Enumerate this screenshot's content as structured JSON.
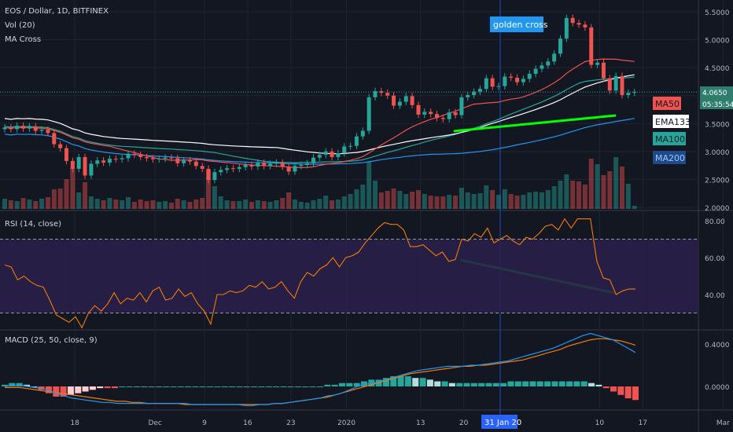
{
  "colors": {
    "bg": "#131722",
    "grid": "#1f2430",
    "text": "#b2b5be",
    "up": "#26a69a",
    "down": "#ef5350",
    "ma50": "#ef5350",
    "ema133": "#ffffff",
    "ma100": "#26a69a",
    "ma200": "#2196f3",
    "trend": "#00ff00",
    "rsi": "#f57c00",
    "rsi_band": "#2a1f4a",
    "macd": "#2196f3",
    "signal": "#f57c00",
    "hist_pos": "#26a69a",
    "hist_pos_light": "#b2dfdb",
    "hist_neg": "#ef5350",
    "hist_neg_light": "#ffcdd2"
  },
  "chart_data": [
    {
      "type": "candlestick",
      "title": "EOS / Dollar, 1D, BITFINEX",
      "indicators": [
        "Vol (20)",
        "MA Cross"
      ],
      "ylim": [
        2.0,
        5.5
      ],
      "y_ticks": [
        "5.5000",
        "5.0000",
        "4.5000",
        "4.0000",
        "3.5000",
        "3.0000",
        "2.5000",
        "2.0000"
      ],
      "x_ticks": [
        "18",
        "Dec",
        "9",
        "16",
        "23",
        "2020",
        "13",
        "20",
        "10",
        "17",
        "Mar"
      ],
      "crosshair_date": "31 Jan 20",
      "last_price": "4.0650",
      "countdown": "05:35:54",
      "annotation": "golden cross",
      "ma_labels": [
        "MA50",
        "EMA133",
        "MA100",
        "MA200"
      ],
      "closes": [
        3.43,
        3.4,
        3.46,
        3.41,
        3.45,
        3.37,
        3.39,
        3.33,
        3.13,
        3.06,
        2.83,
        2.69,
        2.9,
        2.57,
        2.78,
        2.84,
        2.8,
        2.87,
        2.86,
        2.88,
        2.96,
        2.94,
        2.9,
        2.88,
        2.86,
        2.87,
        2.89,
        2.88,
        2.79,
        2.84,
        2.82,
        2.74,
        2.69,
        2.49,
        2.63,
        2.67,
        2.7,
        2.69,
        2.72,
        2.76,
        2.73,
        2.8,
        2.74,
        2.78,
        2.8,
        2.73,
        2.64,
        2.74,
        2.76,
        2.79,
        2.89,
        2.94,
        3.0,
        2.9,
        2.97,
        3.09,
        3.1,
        3.27,
        3.37,
        3.97,
        4.08,
        4.05,
        4.0,
        3.82,
        3.89,
        3.99,
        3.83,
        3.66,
        3.71,
        3.67,
        3.6,
        3.58,
        3.7,
        3.65,
        3.97,
        4.01,
        4.07,
        4.12,
        4.31,
        4.16,
        4.17,
        4.34,
        4.32,
        4.24,
        4.3,
        4.39,
        4.48,
        4.54,
        4.61,
        4.75,
        5.02,
        5.39,
        5.3,
        5.27,
        5.22,
        4.55,
        4.59,
        4.31,
        4.09,
        4.35,
        4.01,
        4.05,
        4.065
      ],
      "volume": [
        1.3,
        1.1,
        1.0,
        1.4,
        1.2,
        1.0,
        1.3,
        1.5,
        2.5,
        2.6,
        3.8,
        5.2,
        2.1,
        3.4,
        1.6,
        1.3,
        1.1,
        1.4,
        1.2,
        1.1,
        1.5,
        0.9,
        1.2,
        1.0,
        1.1,
        0.9,
        1.0,
        0.8,
        1.3,
        1.1,
        0.9,
        1.2,
        1.4,
        4.9,
        2.9,
        1.6,
        1.1,
        1.0,
        1.0,
        1.2,
        0.9,
        1.1,
        1.0,
        0.9,
        1.1,
        1.4,
        2.1,
        1.2,
        0.9,
        0.8,
        1.1,
        1.3,
        1.7,
        1.1,
        1.2,
        1.6,
        1.9,
        2.5,
        3.1,
        6.0,
        3.6,
        2.1,
        2.3,
        2.6,
        2.3,
        1.9,
        2.2,
        2.4,
        1.9,
        1.7,
        1.6,
        1.6,
        1.8,
        1.7,
        2.7,
        2.1,
        1.9,
        2.0,
        3.0,
        2.4,
        1.8,
        2.5,
        1.9,
        1.7,
        1.8,
        2.1,
        2.2,
        2.1,
        2.4,
        2.9,
        3.6,
        4.4,
        3.6,
        3.5,
        3.1,
        6.4,
        5.7,
        4.3,
        4.8,
        6.6,
        5.4,
        3.2,
        0.4
      ]
    },
    {
      "type": "line",
      "title": "RSI (14, close)",
      "ylim": [
        20,
        82
      ],
      "y_ticks": [
        "80.00",
        "60.00",
        "40.00"
      ],
      "bands": [
        30,
        70
      ],
      "values": [
        56,
        55,
        48,
        50,
        47,
        45,
        44,
        37,
        29,
        27,
        25,
        28,
        22,
        30,
        34,
        31,
        35,
        41,
        35,
        38,
        37,
        41,
        36,
        42,
        44,
        37,
        38,
        43,
        39,
        41,
        35,
        31,
        24,
        40,
        40,
        42,
        41,
        42,
        45,
        44,
        47,
        43,
        44,
        47,
        42,
        38,
        47,
        52,
        50,
        54,
        56,
        60,
        55,
        60,
        61,
        63,
        68,
        72,
        76,
        79,
        78,
        78,
        75,
        66,
        66,
        67,
        64,
        61,
        63,
        58,
        59,
        70,
        69,
        73,
        71,
        76,
        68,
        70,
        72,
        69,
        67,
        71,
        70,
        73,
        77,
        78,
        75,
        81,
        76,
        81,
        81,
        81,
        58,
        49,
        48,
        40,
        42,
        43,
        43
      ]
    },
    {
      "type": "line",
      "title": "MACD (25, 50, close, 9)",
      "ylim": [
        -0.18,
        0.5
      ],
      "y_ticks": [
        "0.4000",
        "0.0000"
      ],
      "series": [
        {
          "name": "MACD",
          "values": [
            0.0,
            0.01,
            0.01,
            0.0,
            -0.01,
            -0.02,
            -0.04,
            -0.07,
            -0.09,
            -0.11,
            -0.12,
            -0.13,
            -0.14,
            -0.15,
            -0.15,
            -0.16,
            -0.16,
            -0.16,
            -0.16,
            -0.16,
            -0.16,
            -0.16,
            -0.16,
            -0.16,
            -0.16,
            -0.17,
            -0.17,
            -0.17,
            -0.17,
            -0.17,
            -0.17,
            -0.17,
            -0.18,
            -0.18,
            -0.17,
            -0.17,
            -0.16,
            -0.16,
            -0.15,
            -0.14,
            -0.13,
            -0.12,
            -0.11,
            -0.09,
            -0.08,
            -0.06,
            -0.03,
            0.0,
            0.02,
            0.03,
            0.05,
            0.07,
            0.09,
            0.11,
            0.13,
            0.15,
            0.16,
            0.17,
            0.18,
            0.19,
            0.19,
            0.19,
            0.2,
            0.2,
            0.21,
            0.22,
            0.23,
            0.24,
            0.26,
            0.28,
            0.3,
            0.32,
            0.34,
            0.36,
            0.39,
            0.42,
            0.45,
            0.48,
            0.5,
            0.48,
            0.46,
            0.44,
            0.4,
            0.36,
            0.32
          ]
        },
        {
          "name": "Signal",
          "values": [
            -0.01,
            -0.01,
            -0.01,
            -0.02,
            -0.03,
            -0.04,
            -0.05,
            -0.06,
            -0.07,
            -0.08,
            -0.09,
            -0.1,
            -0.11,
            -0.12,
            -0.13,
            -0.14,
            -0.14,
            -0.15,
            -0.15,
            -0.16,
            -0.16,
            -0.16,
            -0.16,
            -0.16,
            -0.17,
            -0.17,
            -0.17,
            -0.17,
            -0.17,
            -0.17,
            -0.17,
            -0.17,
            -0.17,
            -0.17,
            -0.17,
            -0.17,
            -0.16,
            -0.16,
            -0.15,
            -0.14,
            -0.13,
            -0.12,
            -0.11,
            -0.1,
            -0.08,
            -0.06,
            -0.04,
            -0.02,
            0.0,
            0.02,
            0.04,
            0.06,
            0.08,
            0.1,
            0.12,
            0.13,
            0.14,
            0.15,
            0.16,
            0.17,
            0.18,
            0.19,
            0.19,
            0.2,
            0.2,
            0.21,
            0.22,
            0.23,
            0.24,
            0.25,
            0.27,
            0.29,
            0.31,
            0.33,
            0.35,
            0.38,
            0.4,
            0.42,
            0.44,
            0.45,
            0.45,
            0.44,
            0.43,
            0.41,
            0.39
          ]
        }
      ],
      "histogram": [
        0.01,
        0.02,
        0.02,
        0.01,
        0.0,
        -0.02,
        -0.04,
        -0.06,
        -0.06,
        -0.05,
        -0.04,
        -0.03,
        -0.02,
        -0.01,
        -0.01,
        -0.01,
        0.0,
        0.0,
        0.0,
        0.0,
        0.0,
        0.0,
        0.0,
        0.0,
        0.0,
        0.0,
        0.0,
        0.0,
        0.0,
        0.0,
        0.0,
        0.0,
        0.0,
        0.0,
        0.0,
        0.0,
        0.0,
        0.0,
        0.0,
        0.0,
        0.0,
        0.0,
        0.0,
        0.0,
        0.01,
        0.01,
        0.02,
        0.02,
        0.02,
        0.03,
        0.04,
        0.04,
        0.05,
        0.06,
        0.06,
        0.06,
        0.05,
        0.05,
        0.04,
        0.03,
        0.03,
        0.02,
        0.02,
        0.02,
        0.02,
        0.02,
        0.02,
        0.02,
        0.02,
        0.03,
        0.03,
        0.03,
        0.03,
        0.03,
        0.03,
        0.03,
        0.03,
        0.03,
        0.03,
        0.03,
        0.02,
        0.01,
        -0.01,
        -0.03,
        -0.05,
        -0.07,
        -0.08
      ]
    }
  ]
}
